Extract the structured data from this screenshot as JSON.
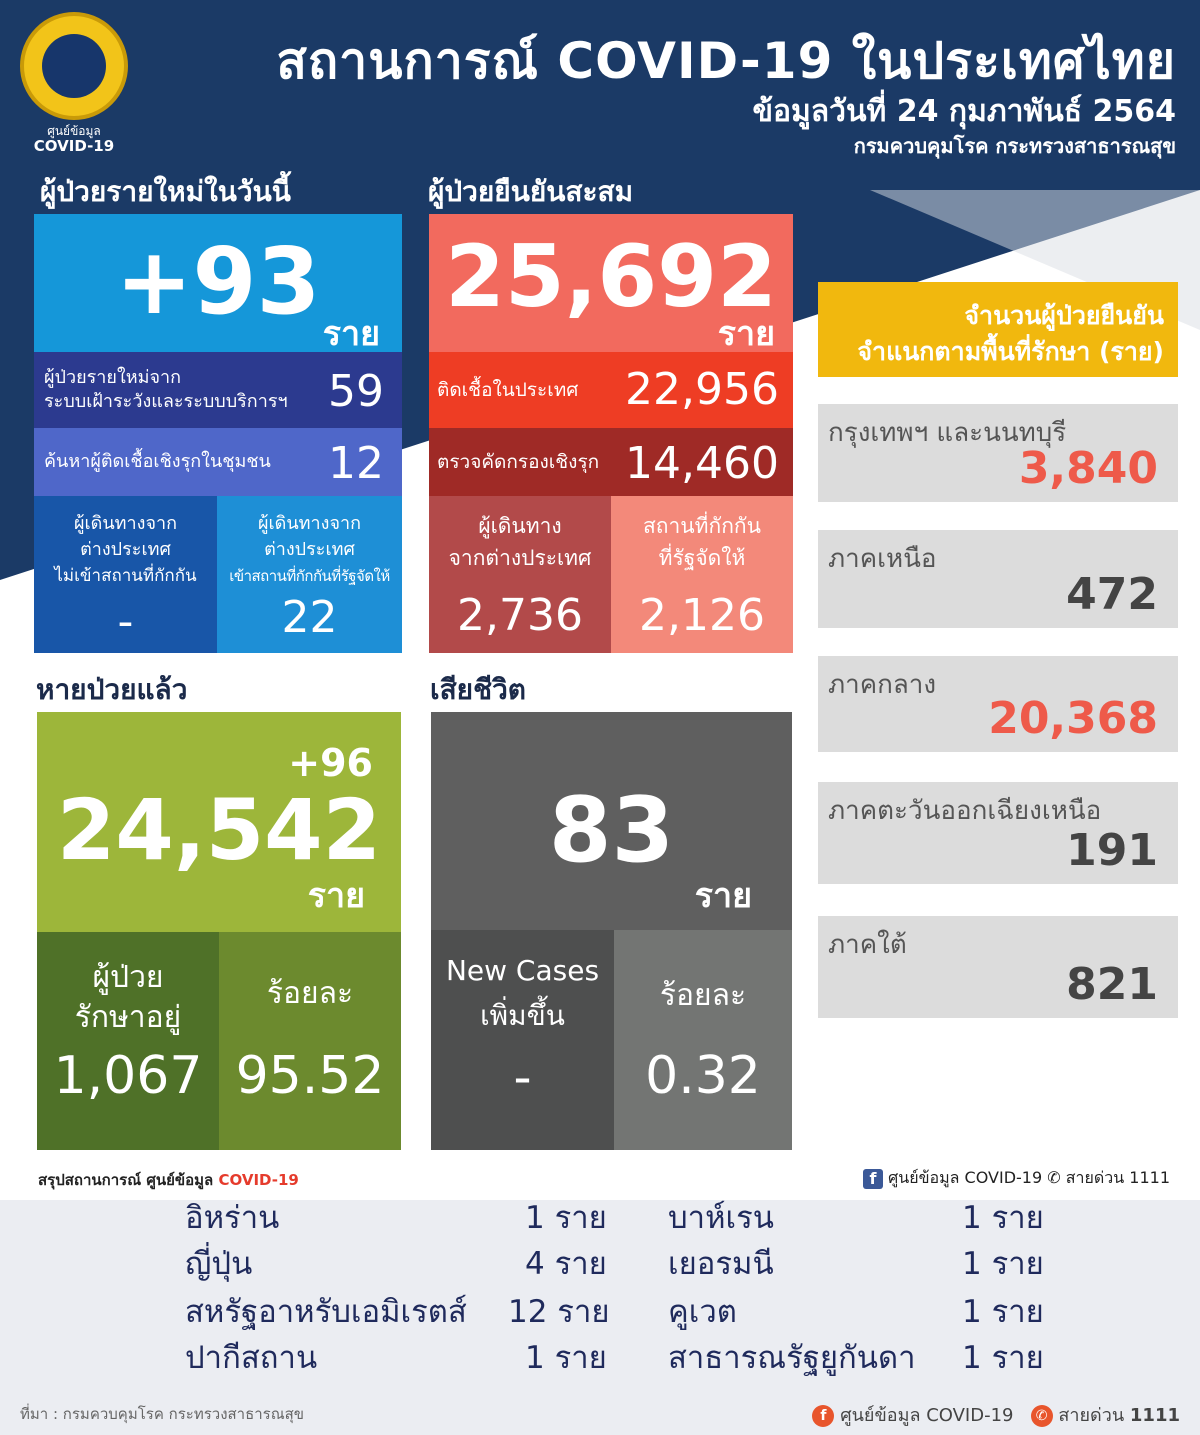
{
  "header": {
    "title": "สถานการณ์ COVID-19 ในประเทศไทย",
    "date": "ข้อมูลวันที่ 24 กุมภาพันธ์ 2564",
    "source": "กรมควบคุมโรค กระทรวงสาธารณสุข",
    "logo_line1": "ศูนย์ข้อมูล",
    "logo_line2": "COVID-19"
  },
  "new_cases": {
    "title": "ผู้ป่วยรายใหม่ในวันนี้",
    "value": "+93",
    "unit": "ราย",
    "surveillance_label_1": "ผู้ป่วยรายใหม่จาก",
    "surveillance_label_2": "ระบบเฝ้าระวังและระบบบริการฯ",
    "surveillance_value": "59",
    "active_search_label": "ค้นหาผู้ติดเชื้อเชิงรุกในชุมชน",
    "active_search_value": "12",
    "abroad_no_q_label_1": "ผู้เดินทางจาก",
    "abroad_no_q_label_2": "ต่างประเทศ",
    "abroad_no_q_label_3": "ไม่เข้าสถานที่กักกัน",
    "abroad_no_q_value": "-",
    "abroad_q_label_1": "ผู้เดินทางจาก",
    "abroad_q_label_2": "ต่างประเทศ",
    "abroad_q_label_3": "เข้าสถานที่กักกันที่รัฐจัดให้",
    "abroad_q_value": "22"
  },
  "cumulative": {
    "title": "ผู้ป่วยยืนยันสะสม",
    "value": "25,692",
    "unit": "ราย",
    "local_label": "ติดเชื้อในประเทศ",
    "local_value": "22,956",
    "screening_label": "ตรวจคัดกรองเชิงรุก",
    "screening_value": "14,460",
    "abroad_label_1": "ผู้เดินทาง",
    "abroad_label_2": "จากต่างประเทศ",
    "abroad_value": "2,736",
    "quarantine_label_1": "สถานที่กักกัน",
    "quarantine_label_2": "ที่รัฐจัดให้",
    "quarantine_value": "2,126"
  },
  "recovered": {
    "title": "หายป่วยแล้ว",
    "delta": "+96",
    "value": "24,542",
    "unit": "ราย",
    "treating_label_1": "ผู้ป่วย",
    "treating_label_2": "รักษาอยู่",
    "treating_value": "1,067",
    "percent_label": "ร้อยละ",
    "percent_value": "95.52"
  },
  "deaths": {
    "title": "เสียชีวิต",
    "value": "83",
    "unit": "ราย",
    "new_label_1": "New Cases",
    "new_label_2": "เพิ่มขึ้น",
    "new_value": "-",
    "percent_label": "ร้อยละ",
    "percent_value": "0.32"
  },
  "regions": {
    "title_1": "จำนวนผู้ป่วยยืนยัน",
    "title_2": "จำแนกตามพื้นที่รักษา (ราย)",
    "items": [
      {
        "label": "กรุงเทพฯ และนนทบุรี",
        "value": "3,840",
        "color": "#ee5a4a"
      },
      {
        "label": "ภาคเหนือ",
        "value": "472",
        "color": "#444444"
      },
      {
        "label": "ภาคกลาง",
        "value": "20,368",
        "color": "#ee5a4a"
      },
      {
        "label": "ภาคตะวันออกเฉียงเหนือ",
        "value": "191",
        "color": "#444444"
      },
      {
        "label": "ภาคใต้",
        "value": "821",
        "color": "#444444"
      }
    ]
  },
  "footer": {
    "summary_prefix": "สรุปสถานการณ์ ศูนย์ข้อมูล ",
    "summary_highlight": "COVID-19",
    "fb_label": "ศูนย์ข้อมูล COVID-19",
    "hotline": "สายด่วน 1111"
  },
  "countries": {
    "left": [
      {
        "name": "อิหร่าน",
        "count": "1 ราย"
      },
      {
        "name": "ญี่ปุ่น",
        "count": "4 ราย"
      },
      {
        "name": "สหรัฐอาหรับเอมิเรตส์",
        "count": "12 ราย"
      },
      {
        "name": "ปากีสถาน",
        "count": "1 ราย"
      }
    ],
    "right": [
      {
        "name": "บาห์เรน",
        "count": "1 ราย"
      },
      {
        "name": "เยอรมนี",
        "count": "1 ราย"
      },
      {
        "name": "คูเวต",
        "count": "1 ราย"
      },
      {
        "name": "สาธารณรัฐยูกันดา",
        "count": "1 ราย"
      }
    ]
  },
  "bottom_bar": {
    "source": "ที่มา : กรมควบคุมโรค กระทรวงสาธารณสุข",
    "fb_label": "ศูนย์ข้อมูล COVID-19",
    "hotline_label": "สายด่วน",
    "hotline_number": "1111"
  },
  "colors": {
    "navy": "#1b3a66",
    "new_blue": "#1597d9",
    "cum_red": "#f26a5e",
    "recovered_green": "#9db63a",
    "death_gray": "#5f5f5f",
    "region_gold": "#f1b80e"
  }
}
